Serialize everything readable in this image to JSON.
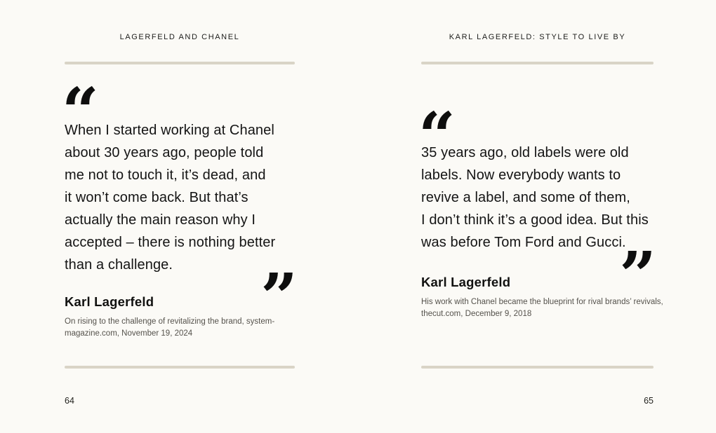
{
  "colors": {
    "background": "#fbfaf6",
    "rule": "#d9d4c6",
    "quote_text": "#141414",
    "muted_text": "#55524c",
    "quote_mark": "#0e0e0e"
  },
  "quote_marks": {
    "open": "“",
    "close": "”"
  },
  "pages": [
    {
      "header": "LAGERFELD AND CHANEL",
      "quote_lines": [
        "When I started working at Chanel",
        "about 30 years ago, people told",
        "me not to touch it, it’s dead, and",
        "it won’t come back. But that’s",
        "actually the main reason why I",
        "accepted – there is nothing better",
        "than a challenge."
      ],
      "author": "Karl Lagerfeld",
      "attribution_lines": [
        "On rising to the challenge of revitalizing the brand, system-",
        "magazine.com, November 19, 2024"
      ],
      "page_number": "64"
    },
    {
      "header": "KARL LAGERFELD: STYLE TO LIVE BY",
      "quote_lines": [
        "35 years ago, old labels were old",
        "labels. Now everybody wants to",
        "revive a label, and some of them,",
        "I don’t think it’s a good idea. But this",
        "was before Tom Ford and Gucci."
      ],
      "author": "Karl Lagerfeld",
      "attribution_lines": [
        "His work with Chanel became the blueprint for rival brands’ revivals,",
        "thecut.com, December 9, 2018"
      ],
      "page_number": "65"
    }
  ]
}
